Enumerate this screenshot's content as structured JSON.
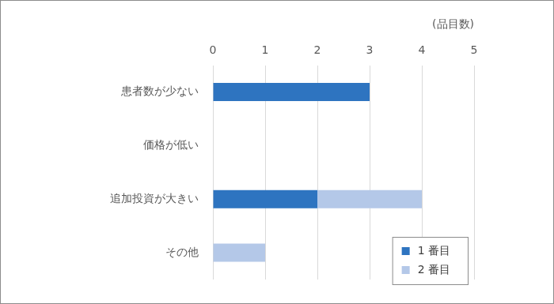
{
  "chart_data": {
    "type": "bar",
    "orientation": "horizontal",
    "stacked": true,
    "x_label": "(品目数)",
    "categories": [
      "患者数が少ない",
      "価格が低い",
      "追加投資が大きい",
      "その他"
    ],
    "series": [
      {
        "name": "1 番目",
        "color": "#2e74c0",
        "values": [
          3,
          0,
          2,
          0
        ]
      },
      {
        "name": "2 番目",
        "color": "#b4c8e8",
        "values": [
          0,
          0,
          2,
          1
        ]
      }
    ],
    "xlim": [
      0,
      5
    ],
    "xticks": [
      0,
      1,
      2,
      3,
      4,
      5
    ],
    "grid": true,
    "legend": "lower right"
  }
}
